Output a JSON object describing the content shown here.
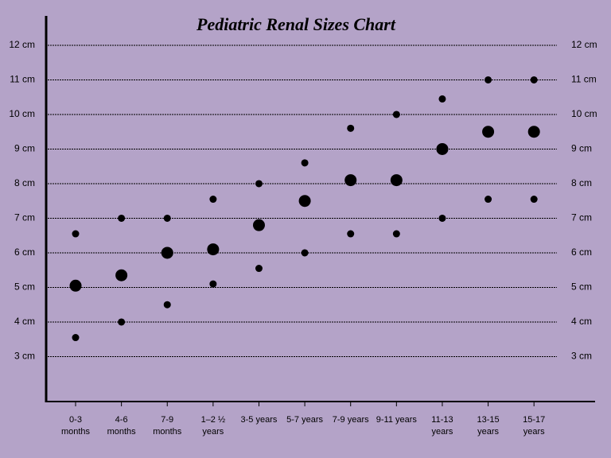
{
  "chart_data": {
    "type": "scatter",
    "title": "Pediatric Renal Sizes Chart",
    "categories": [
      "0-3 months",
      "4-6 months",
      "7-9 months",
      "1–2 ½ years",
      "3-5 years",
      "5-7 years",
      "7-9 years",
      "9-11 years",
      "11-13 years",
      "13-15 years",
      "15-17 years"
    ],
    "series": [
      {
        "color": "#000000",
        "marker_size": 4.5,
        "values": [
          6.55,
          7.0,
          7.0,
          7.55,
          8.0,
          8.6,
          9.6,
          10.0,
          10.45,
          11.0,
          11.0
        ]
      },
      {
        "color": "#000000",
        "marker_size": 7.5,
        "values": [
          5.05,
          5.35,
          6.0,
          6.1,
          6.8,
          7.5,
          8.1,
          8.1,
          9.0,
          9.5,
          9.5
        ]
      },
      {
        "color": "#000000",
        "marker_size": 4.5,
        "values": [
          3.55,
          4.0,
          4.5,
          5.1,
          5.55,
          6.0,
          6.55,
          6.55,
          7.0,
          7.55,
          7.55
        ]
      }
    ],
    "ylim": [
      1.7,
      12.85
    ],
    "yticks": [
      {
        "value": 3,
        "label": "3 cm"
      },
      {
        "value": 4,
        "label": "4 cm"
      },
      {
        "value": 5,
        "label": "5 cm"
      },
      {
        "value": 6,
        "label": "6 cm"
      },
      {
        "value": 7,
        "label": "7 cm"
      },
      {
        "value": 8,
        "label": "8 cm"
      },
      {
        "value": 9,
        "label": "9 cm"
      },
      {
        "value": 10,
        "label": "10 cm"
      },
      {
        "value": 11,
        "label": "11 cm"
      },
      {
        "value": 12,
        "label": "12 cm"
      }
    ],
    "grid": true
  }
}
